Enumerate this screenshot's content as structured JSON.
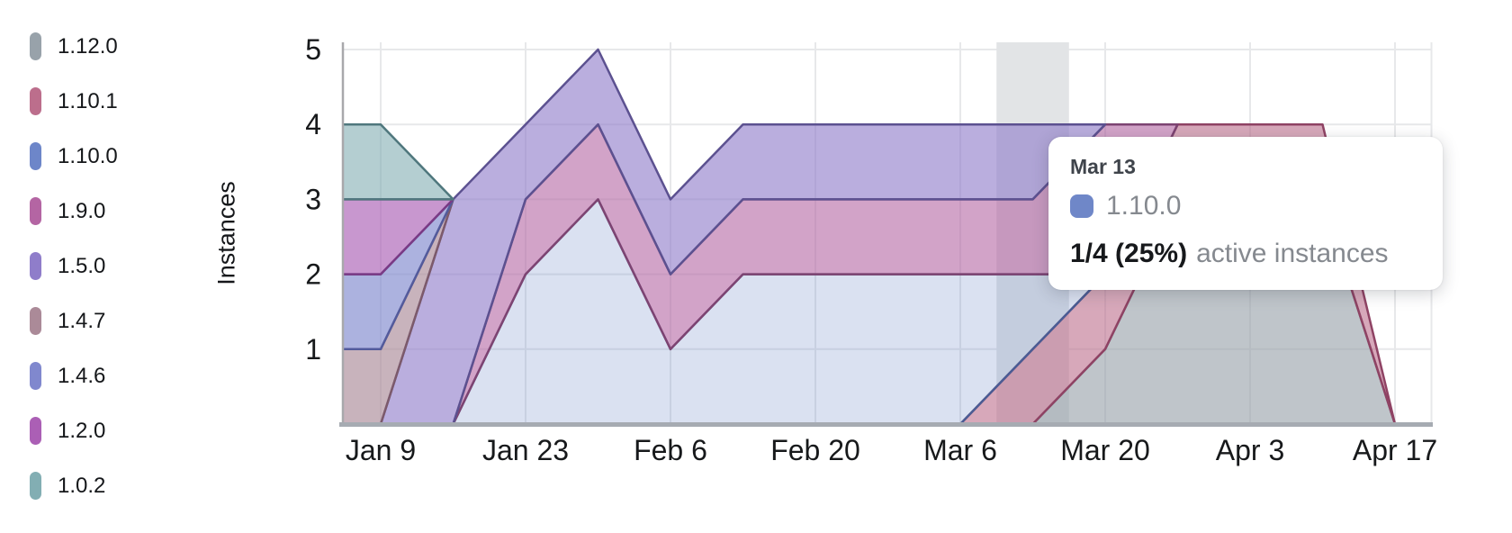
{
  "y_axis_title": "Instances",
  "legend": {
    "items": [
      {
        "label": "1.12.0",
        "color": "#98a2aa"
      },
      {
        "label": "1.10.1",
        "color": "#bc6e8c"
      },
      {
        "label": "1.10.0",
        "color": "#6d86c9"
      },
      {
        "label": "1.9.0",
        "color": "#b465a3"
      },
      {
        "label": "1.5.0",
        "color": "#8f7dca"
      },
      {
        "label": "1.4.7",
        "color": "#ab8a98"
      },
      {
        "label": "1.4.6",
        "color": "#8088ce"
      },
      {
        "label": "1.2.0",
        "color": "#ab5fb5"
      },
      {
        "label": "1.0.2",
        "color": "#82aeb3"
      }
    ]
  },
  "tooltip": {
    "date": "Mar 13",
    "series_label": "1.10.0",
    "swatch_color": "#6f87c8",
    "value_text": "1/4 (25%)",
    "value_suffix": "active instances"
  },
  "chart_data": {
    "type": "area",
    "stacked": true,
    "title": "",
    "xlabel": "",
    "ylabel": "Instances",
    "ylim": [
      0,
      5
    ],
    "y_ticks": [
      1,
      2,
      3,
      4,
      5
    ],
    "grid": true,
    "legend_position": "left",
    "x": [
      "Jan 2",
      "Jan 9",
      "Jan 16",
      "Jan 23",
      "Jan 30",
      "Feb 6",
      "Feb 13",
      "Feb 20",
      "Feb 27",
      "Mar 6",
      "Mar 13",
      "Mar 20",
      "Mar 27",
      "Apr 3",
      "Apr 10",
      "Apr 17"
    ],
    "x_tick_labels": [
      "Jan 9",
      "Jan 23",
      "Feb 6",
      "Feb 20",
      "Mar 6",
      "Mar 20",
      "Apr 3",
      "Apr 17"
    ],
    "hovered_point": {
      "x": "Mar 13",
      "series": "1.10.0",
      "value": 1,
      "total": 4,
      "percent": "25%"
    },
    "highlight_band_color": "#e2e4e6",
    "gridline_color": "#e7e8ea",
    "axis_line_color": "#a6abb2",
    "series_bottom_to_top": [
      {
        "name": "1.12.0",
        "color": "#98a2aa",
        "stroke": "#606b76",
        "fill_opacity": 0.62,
        "values": [
          0,
          0,
          0,
          0,
          0,
          0,
          0,
          0,
          0,
          0,
          0,
          1,
          3,
          3,
          3,
          0
        ]
      },
      {
        "name": "1.10.1",
        "color": "#bc6e8c",
        "stroke": "#8f4364",
        "fill_opacity": 0.6,
        "values": [
          0,
          0,
          0,
          0,
          0,
          0,
          0,
          0,
          0,
          0,
          1,
          1,
          1,
          1,
          1,
          0
        ]
      },
      {
        "name": "1.10.0",
        "color": "#6d86c9",
        "stroke": "#4a5c94",
        "fill_opacity": 0.25,
        "values": [
          0,
          0,
          0,
          2,
          3,
          1,
          2,
          2,
          2,
          2,
          1,
          0,
          0,
          0,
          0,
          0
        ]
      },
      {
        "name": "1.9.0",
        "color": "#b465a3",
        "stroke": "#7d4472",
        "fill_opacity": 0.6,
        "values": [
          0,
          0,
          0,
          1,
          1,
          1,
          1,
          1,
          1,
          1,
          1,
          2,
          0,
          0,
          0,
          0
        ]
      },
      {
        "name": "1.5.0",
        "color": "#8f7dca",
        "stroke": "#5c5190",
        "fill_opacity": 0.62,
        "values": [
          0,
          0,
          3,
          1,
          1,
          1,
          1,
          1,
          1,
          1,
          1,
          0,
          0,
          0,
          0,
          0
        ]
      },
      {
        "name": "1.4.7",
        "color": "#ab8a98",
        "stroke": "#7c5a6b",
        "fill_opacity": 0.65,
        "values": [
          1,
          1,
          0,
          0,
          0,
          0,
          0,
          0,
          0,
          0,
          0,
          0,
          0,
          0,
          0,
          0
        ]
      },
      {
        "name": "1.4.6",
        "color": "#8088ce",
        "stroke": "#535b9c",
        "fill_opacity": 0.65,
        "values": [
          1,
          1,
          0,
          0,
          0,
          0,
          0,
          0,
          0,
          0,
          0,
          0,
          0,
          0,
          0,
          0
        ]
      },
      {
        "name": "1.2.0",
        "color": "#ab5fb5",
        "stroke": "#7a3a85",
        "fill_opacity": 0.65,
        "values": [
          1,
          1,
          0,
          0,
          0,
          0,
          0,
          0,
          0,
          0,
          0,
          0,
          0,
          0,
          0,
          0
        ]
      },
      {
        "name": "1.0.2",
        "color": "#82aeb3",
        "stroke": "#4f777d",
        "fill_opacity": 0.6,
        "values": [
          1,
          1,
          0,
          0,
          0,
          0,
          0,
          0,
          0,
          0,
          0,
          0,
          0,
          0,
          0,
          0
        ]
      }
    ]
  }
}
